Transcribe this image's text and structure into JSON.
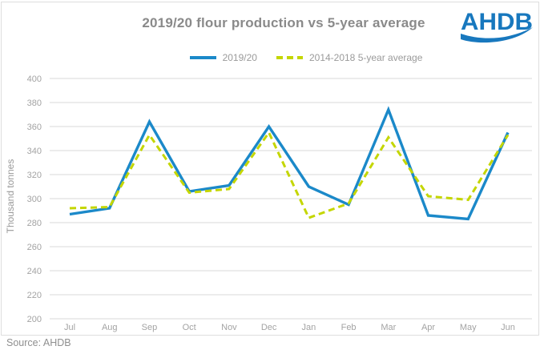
{
  "chart": {
    "title": "2019/20 flour production vs 5-year average",
    "logo_text": "AHDB",
    "source_label": "Source: AHDB"
  },
  "colors": {
    "series_2019_20": "#1b89c9",
    "series_5yr_avg": "#c4d600",
    "logo_blue": "#1878be",
    "grid": "#d9d9d9",
    "title_gray": "#8a8a8a",
    "tick_gray": "#a3a3a3"
  },
  "chart_data": {
    "type": "line",
    "title": "2019/20 flour production vs 5-year average",
    "xlabel": "",
    "ylabel": "Thousand tonnes",
    "categories": [
      "Jul",
      "Aug",
      "Sep",
      "Oct",
      "Nov",
      "Dec",
      "Jan",
      "Feb",
      "Mar",
      "Apr",
      "May",
      "Jun"
    ],
    "series": [
      {
        "name": "2019/20",
        "style": "solid",
        "color": "#1b89c9",
        "values": [
          287,
          292,
          364,
          306,
          311,
          360,
          310,
          295,
          374,
          286,
          283,
          355
        ]
      },
      {
        "name": "2014-2018 5-year average",
        "style": "dashed",
        "color": "#c4d600",
        "values": [
          292,
          293,
          353,
          305,
          308,
          355,
          284,
          296,
          351,
          302,
          299,
          353
        ]
      }
    ],
    "ylim": [
      200,
      400
    ],
    "yticks": [
      200,
      220,
      240,
      260,
      280,
      300,
      320,
      340,
      360,
      380,
      400
    ],
    "grid": true,
    "legend_position": "top"
  }
}
